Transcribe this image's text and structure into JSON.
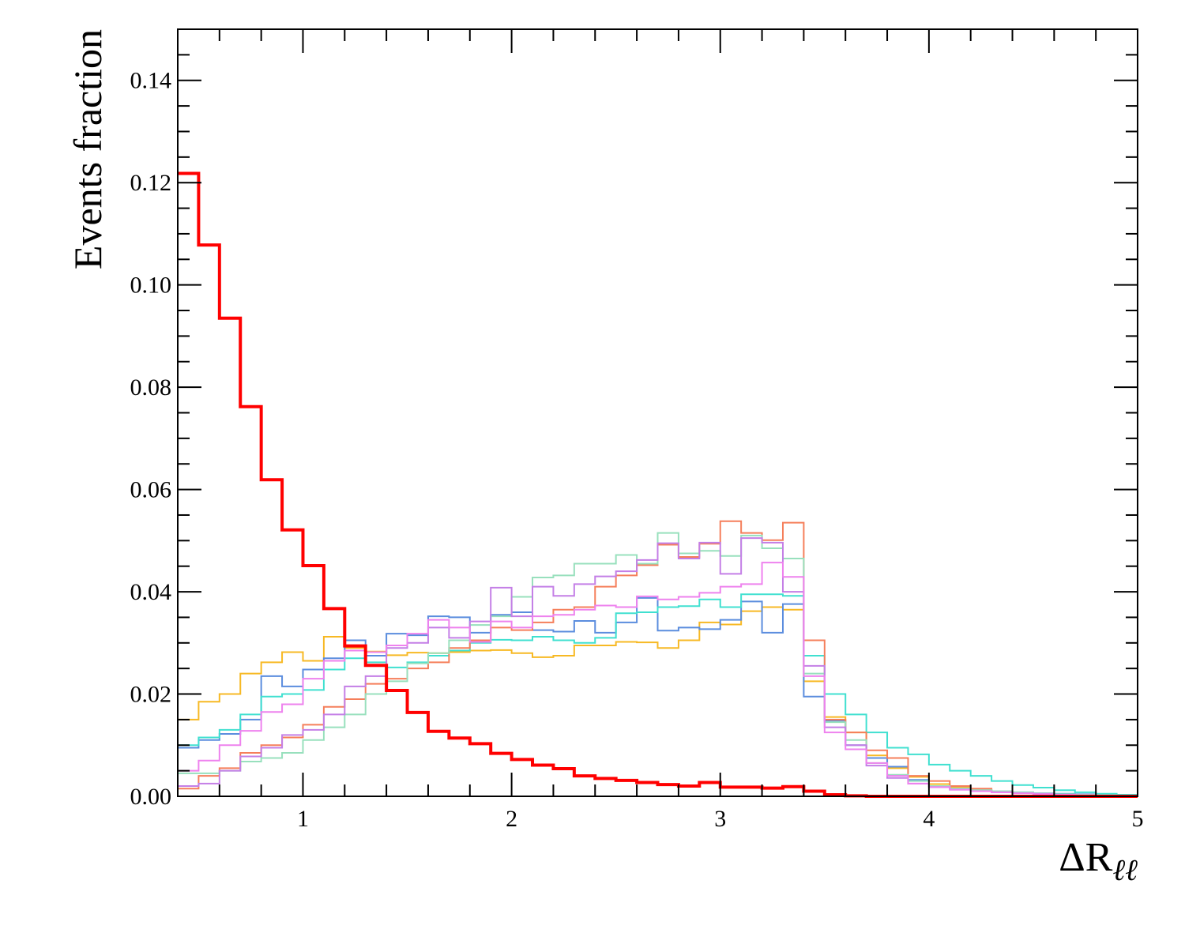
{
  "chart_data": {
    "type": "line",
    "xlabel_symbol": "ΔR",
    "xlabel_subscript": "ℓℓ",
    "ylabel": "Events fraction",
    "xlim": [
      0.4,
      5.0
    ],
    "ylim": [
      0.0,
      0.15
    ],
    "x_ticks": [
      1,
      2,
      3,
      4,
      5
    ],
    "y_ticks": [
      0.0,
      0.02,
      0.04,
      0.06,
      0.08,
      0.1,
      0.12,
      0.14
    ],
    "y_tick_labels": [
      "0.00",
      "0.02",
      "0.04",
      "0.06",
      "0.08",
      "0.10",
      "0.12",
      "0.14"
    ],
    "grid": false,
    "legend": "none",
    "bin_edges_start": 0.4,
    "bin_width": 0.1,
    "series": [
      {
        "color": "#ff0000",
        "line_width": 4,
        "values": [
          0.1218,
          0.1078,
          0.0935,
          0.0762,
          0.0619,
          0.0521,
          0.0451,
          0.0367,
          0.0294,
          0.0256,
          0.0207,
          0.0164,
          0.0127,
          0.0114,
          0.0103,
          0.0084,
          0.0072,
          0.0061,
          0.0054,
          0.004,
          0.0035,
          0.0031,
          0.0027,
          0.0023,
          0.002,
          0.0027,
          0.0018,
          0.0018,
          0.0016,
          0.0019,
          0.001,
          0.0003,
          0.0001,
          0.0,
          0.0,
          0.0,
          0.0,
          0.0,
          0.0,
          0.0,
          0.0,
          0.0,
          0.0,
          0.0,
          0.0,
          0.0
        ]
      },
      {
        "color": "#f7b924",
        "line_width": 2,
        "values": [
          0.015,
          0.0185,
          0.02,
          0.024,
          0.0262,
          0.0282,
          0.0265,
          0.0312,
          0.029,
          0.0283,
          0.0276,
          0.0281,
          0.028,
          0.0282,
          0.0285,
          0.0286,
          0.028,
          0.0272,
          0.0275,
          0.0295,
          0.0295,
          0.0302,
          0.0301,
          0.029,
          0.0305,
          0.034,
          0.0336,
          0.0362,
          0.037,
          0.0365,
          0.0225,
          0.0155,
          0.0125,
          0.008,
          0.0055,
          0.0038,
          0.0024,
          0.0018,
          0.0012,
          0.001,
          0.0007,
          0.0005,
          0.0003,
          0.0002,
          0.0001,
          0.0001
        ]
      },
      {
        "color": "#5b8dde",
        "line_width": 2,
        "values": [
          0.0095,
          0.011,
          0.0122,
          0.015,
          0.0235,
          0.0215,
          0.0248,
          0.027,
          0.0305,
          0.0275,
          0.0318,
          0.0315,
          0.0352,
          0.035,
          0.032,
          0.0355,
          0.036,
          0.0325,
          0.0322,
          0.0343,
          0.032,
          0.034,
          0.0388,
          0.0324,
          0.033,
          0.0327,
          0.0345,
          0.0381,
          0.032,
          0.0376,
          0.0195,
          0.0148,
          0.01,
          0.0075,
          0.0058,
          0.0032,
          0.002,
          0.0015,
          0.0012,
          0.001,
          0.0008,
          0.0006,
          0.0005,
          0.0004,
          0.0002,
          0.0001
        ]
      },
      {
        "color": "#40e0d0",
        "line_width": 2,
        "values": [
          0.01,
          0.0115,
          0.013,
          0.016,
          0.0195,
          0.02,
          0.0208,
          0.0248,
          0.027,
          0.0262,
          0.0252,
          0.0262,
          0.0275,
          0.0285,
          0.03,
          0.0306,
          0.0305,
          0.0312,
          0.0305,
          0.03,
          0.031,
          0.0358,
          0.036,
          0.037,
          0.0372,
          0.0385,
          0.037,
          0.0395,
          0.0395,
          0.0392,
          0.0275,
          0.02,
          0.016,
          0.0125,
          0.0095,
          0.0082,
          0.0062,
          0.005,
          0.004,
          0.003,
          0.0022,
          0.0017,
          0.0012,
          0.0008,
          0.0005,
          0.0003
        ]
      },
      {
        "color": "#f57f5b",
        "line_width": 2,
        "values": [
          0.0015,
          0.004,
          0.0055,
          0.0085,
          0.01,
          0.0115,
          0.014,
          0.0175,
          0.019,
          0.022,
          0.023,
          0.025,
          0.0262,
          0.029,
          0.0305,
          0.033,
          0.0325,
          0.034,
          0.0365,
          0.037,
          0.041,
          0.0432,
          0.0452,
          0.0492,
          0.0468,
          0.0494,
          0.0538,
          0.0515,
          0.0501,
          0.0535,
          0.0305,
          0.015,
          0.0125,
          0.009,
          0.0075,
          0.004,
          0.003,
          0.002,
          0.0015,
          0.001,
          0.0007,
          0.0005,
          0.0003,
          0.0002,
          0.0001,
          0.0001
        ]
      },
      {
        "color": "#98e0bd",
        "line_width": 2,
        "values": [
          0.0045,
          0.0045,
          0.005,
          0.0068,
          0.0075,
          0.0085,
          0.011,
          0.0135,
          0.016,
          0.02,
          0.0225,
          0.026,
          0.028,
          0.0305,
          0.0335,
          0.0352,
          0.039,
          0.0428,
          0.0432,
          0.0455,
          0.0455,
          0.0472,
          0.0455,
          0.0515,
          0.0475,
          0.048,
          0.047,
          0.051,
          0.0485,
          0.0465,
          0.024,
          0.0145,
          0.011,
          0.0065,
          0.0042,
          0.003,
          0.002,
          0.0015,
          0.0012,
          0.001,
          0.0008,
          0.0006,
          0.0004,
          0.0003,
          0.0002,
          0.0001
        ]
      },
      {
        "color": "#c47fe6",
        "line_width": 2,
        "values": [
          0.002,
          0.0025,
          0.005,
          0.0078,
          0.0095,
          0.012,
          0.013,
          0.016,
          0.0215,
          0.0235,
          0.029,
          0.03,
          0.033,
          0.031,
          0.0342,
          0.0408,
          0.0352,
          0.041,
          0.0392,
          0.0415,
          0.043,
          0.044,
          0.0462,
          0.0495,
          0.0465,
          0.0496,
          0.0435,
          0.0505,
          0.0496,
          0.04,
          0.0255,
          0.0135,
          0.01,
          0.006,
          0.0036,
          0.0025,
          0.0018,
          0.0013,
          0.001,
          0.0008,
          0.0006,
          0.0005,
          0.0003,
          0.0002,
          0.0001,
          0.0001
        ]
      },
      {
        "color": "#ee82ee",
        "line_width": 2,
        "values": [
          0.005,
          0.007,
          0.01,
          0.0128,
          0.0165,
          0.018,
          0.023,
          0.0265,
          0.0285,
          0.0282,
          0.0295,
          0.0318,
          0.0345,
          0.033,
          0.0302,
          0.0342,
          0.033,
          0.0352,
          0.0355,
          0.0365,
          0.0373,
          0.037,
          0.0391,
          0.0385,
          0.039,
          0.0398,
          0.041,
          0.0415,
          0.0457,
          0.0429,
          0.0235,
          0.0125,
          0.0092,
          0.0065,
          0.004,
          0.0025,
          0.0018,
          0.0013,
          0.001,
          0.0008,
          0.0006,
          0.0004,
          0.0003,
          0.0002,
          0.0001,
          0.0001
        ]
      }
    ]
  }
}
